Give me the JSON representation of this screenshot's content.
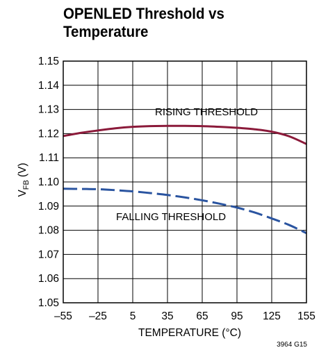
{
  "chart_data": {
    "type": "line",
    "title_lines": [
      "OPENLED Threshold vs",
      "Temperature"
    ],
    "xlabel": "TEMPERATURE (°C)",
    "ylabel_main": "V",
    "ylabel_sub": "FB",
    "ylabel_unit": "(V)",
    "xlim": [
      -55,
      155
    ],
    "ylim": [
      1.05,
      1.15
    ],
    "x_ticks": [
      -55,
      -25,
      5,
      35,
      65,
      95,
      125,
      155
    ],
    "x_tick_labels": [
      "–55",
      "–25",
      "5",
      "35",
      "65",
      "95",
      "125",
      "155"
    ],
    "y_ticks": [
      1.05,
      1.06,
      1.07,
      1.08,
      1.09,
      1.1,
      1.11,
      1.12,
      1.13,
      1.14,
      1.15
    ],
    "y_tick_labels": [
      "1.05",
      "1.06",
      "1.07",
      "1.08",
      "1.09",
      "1.10",
      "1.11",
      "1.12",
      "1.13",
      "1.14",
      "1.15"
    ],
    "grid": true,
    "series": [
      {
        "name": "RISING THRESHOLD",
        "color": "#8b1a3a",
        "style": "solid",
        "x": [
          -55,
          -40,
          -25,
          -10,
          5,
          20,
          35,
          50,
          65,
          80,
          95,
          110,
          125,
          140,
          155
        ],
        "y": [
          1.119,
          1.1203,
          1.1213,
          1.1222,
          1.1228,
          1.1231,
          1.1232,
          1.1232,
          1.1231,
          1.1228,
          1.1224,
          1.1218,
          1.1208,
          1.1189,
          1.1157
        ]
      },
      {
        "name": "FALLING THRESHOLD",
        "color": "#2a54a0",
        "style": "dashed",
        "x": [
          -55,
          -40,
          -25,
          -10,
          5,
          20,
          35,
          50,
          65,
          80,
          95,
          110,
          125,
          140,
          155
        ],
        "y": [
          1.0972,
          1.0971,
          1.097,
          1.0966,
          1.0961,
          1.0954,
          1.0946,
          1.0936,
          1.0924,
          1.091,
          1.0894,
          1.0874,
          1.0849,
          1.0822,
          1.0788
        ]
      }
    ],
    "annotations": [
      "RISING THRESHOLD",
      "FALLING THRESHOLD"
    ],
    "figure_id": "3964 G15"
  }
}
